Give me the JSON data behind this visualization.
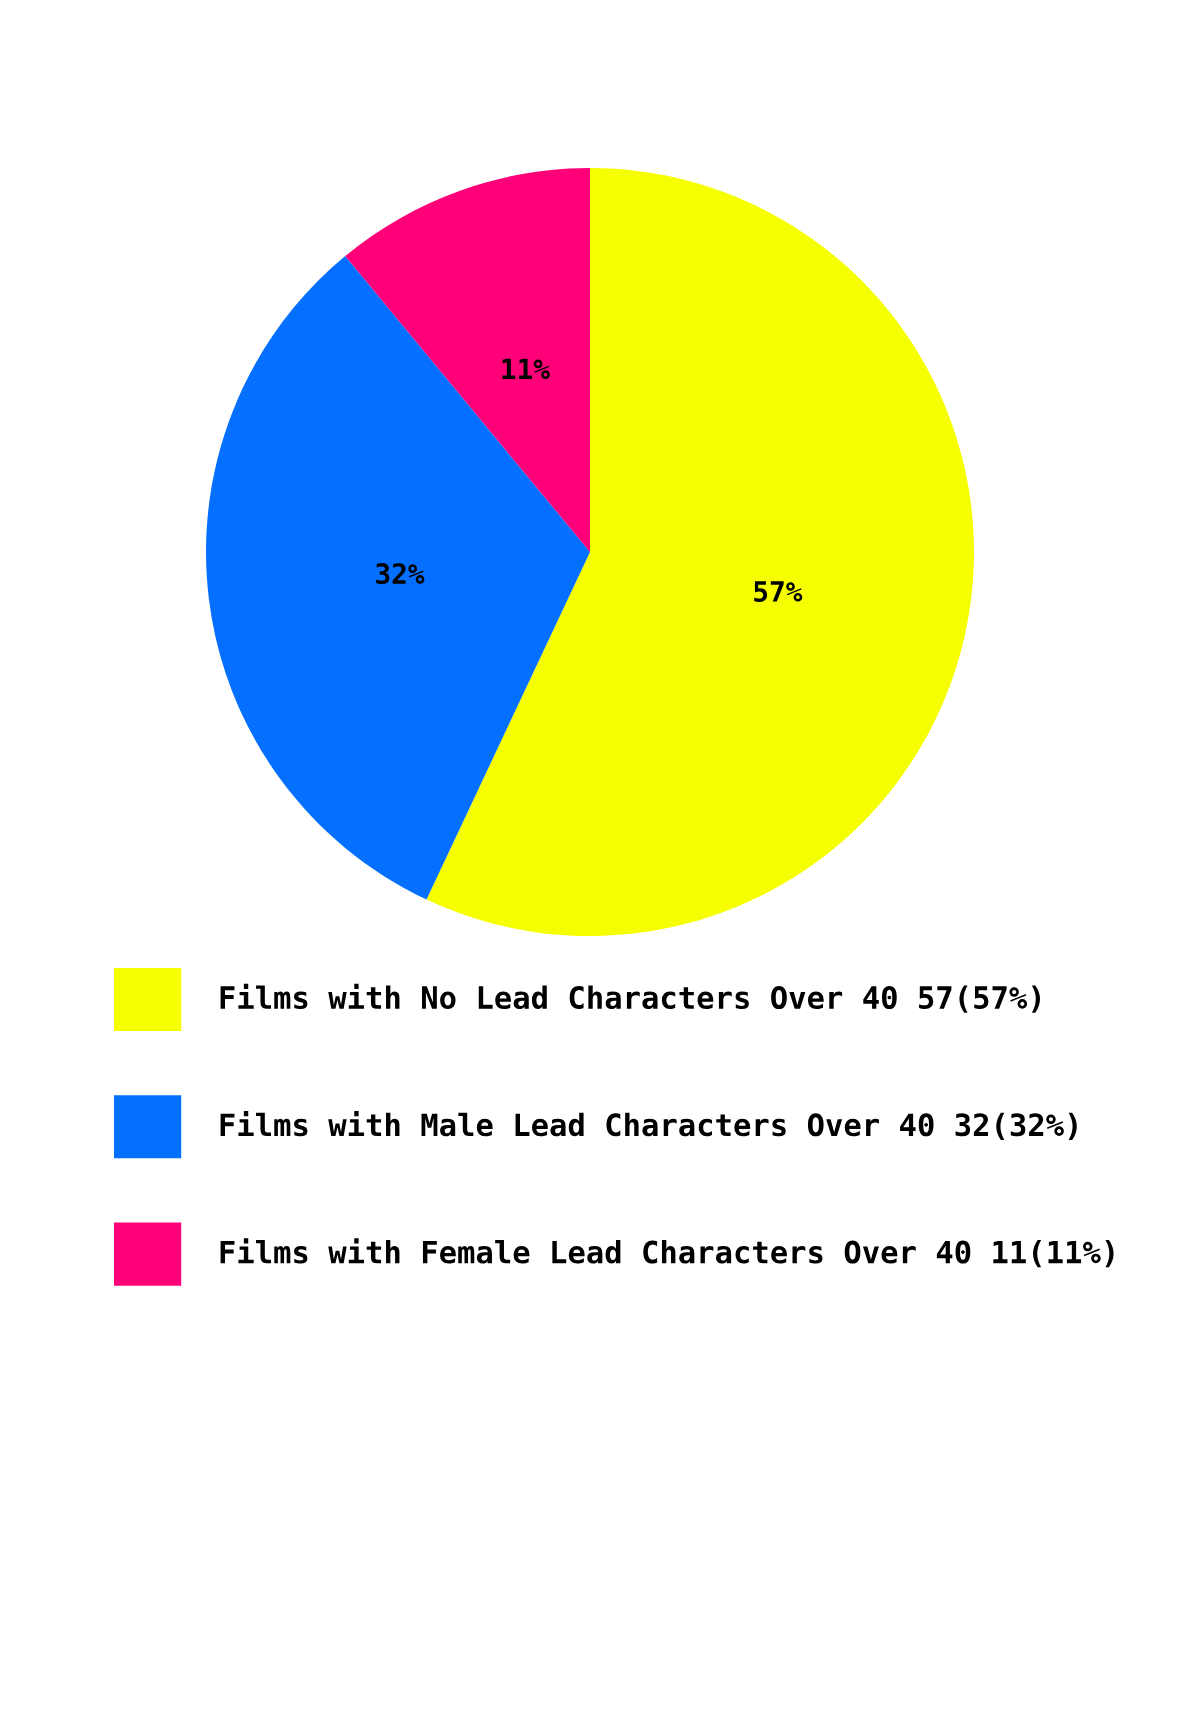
{
  "chart_data": {
    "type": "pie",
    "categories": [
      "Films with No Lead Characters Over 40 57(57%)",
      "Films with Male Lead Characters Over 40 32(32%)",
      "Films with Female Lead Characters Over 40 11(11%)"
    ],
    "values": [
      57,
      32,
      11
    ],
    "colors": [
      "#f5ff00",
      "#0570ff",
      "#ff0078"
    ],
    "value_labels": [
      "57%",
      "32%",
      "11%"
    ],
    "legend": "bottom"
  }
}
